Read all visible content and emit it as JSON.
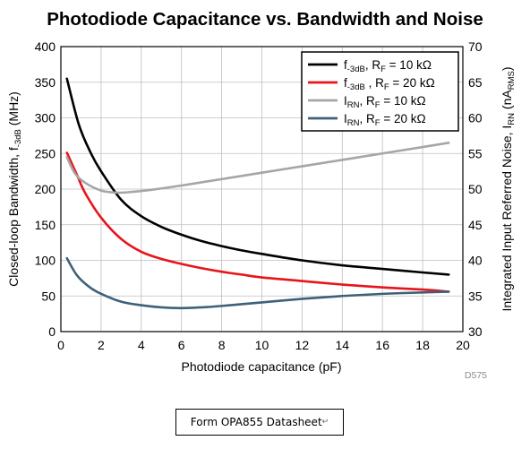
{
  "caption": "Form OPA855 Datasheet",
  "caption_mark": "↵",
  "chart_data": {
    "type": "line",
    "title": "Photodiode Capacitance vs. Bandwidth and Noise",
    "xlabel": "Photodiode capacitance (pF)",
    "ylabel_left": {
      "main": "Closed-loop Bandwidth, f",
      "sub": "-3dB",
      "tail": " (MHz)"
    },
    "ylabel_right": {
      "main": "Integrated Input Referred Noise, I",
      "sub": "RN",
      "mid": " (nA",
      "sub2": "RMS",
      "tail": ")"
    },
    "code": "D575",
    "xlim": [
      0,
      20
    ],
    "ylim_left": [
      0,
      400
    ],
    "ylim_right": [
      30,
      70
    ],
    "x_ticks": [
      0,
      2,
      4,
      6,
      8,
      10,
      12,
      14,
      16,
      18,
      20
    ],
    "y_ticks_left": [
      0,
      50,
      100,
      150,
      200,
      250,
      300,
      350,
      400
    ],
    "y_ticks_right": [
      30,
      35,
      40,
      45,
      50,
      55,
      60,
      65,
      70
    ],
    "grid": true,
    "legend_position": "top-right",
    "series": [
      {
        "name": "f-3dB, RF = 10 kΩ",
        "legend": {
          "main": "f",
          "sub": "-3dB",
          "rest": ", R",
          "sub2": "F",
          "tail": " = 10 kΩ"
        },
        "axis": "left",
        "color": "#000000",
        "x": [
          0.3,
          0.9,
          1.5,
          2,
          3,
          4,
          5,
          6,
          7,
          8,
          9,
          10,
          12,
          14,
          16,
          18,
          19.3
        ],
        "y": [
          355,
          290,
          250,
          225,
          185,
          162,
          147,
          136,
          127,
          120,
          114,
          109,
          100,
          93,
          88,
          83,
          80
        ]
      },
      {
        "name": "f-3dB, RF = 20 kΩ",
        "legend": {
          "main": "f",
          "sub": "-3dB",
          "rest": " , R",
          "sub2": "F",
          "tail": " = 20 kΩ"
        },
        "axis": "left",
        "color": "#e8141b",
        "x": [
          0.3,
          0.8,
          1.2,
          2,
          3,
          4,
          5,
          6,
          7,
          8,
          9,
          10,
          12,
          14,
          16,
          18,
          19.3
        ],
        "y": [
          251,
          220,
          195,
          160,
          130,
          112,
          102,
          95,
          89,
          84,
          80,
          76,
          71,
          66,
          62,
          59,
          56
        ]
      },
      {
        "name": "IRN, RF = 10 kΩ",
        "legend": {
          "main": "I",
          "sub": "RN",
          "rest": ", R",
          "sub2": "F",
          "tail": " = 10 kΩ"
        },
        "axis": "right",
        "color": "#a6a6a6",
        "x": [
          0.3,
          0.7,
          1.2,
          2,
          2.8,
          3.5,
          4.5,
          6,
          8,
          10,
          12,
          14,
          16,
          18,
          19.3
        ],
        "y": [
          54.5,
          52.2,
          50.9,
          49.8,
          49.5,
          49.6,
          49.9,
          50.5,
          51.4,
          52.3,
          53.2,
          54.1,
          55,
          55.9,
          56.5
        ]
      },
      {
        "name": "IRN, RF = 20 kΩ",
        "legend": {
          "main": "I",
          "sub": "RN",
          "rest": ", R",
          "sub2": "F",
          "tail": " = 20 kΩ"
        },
        "axis": "right",
        "color": "#3e6178",
        "x": [
          0.3,
          0.8,
          1.4,
          2,
          3,
          4,
          5,
          6,
          7,
          8,
          10,
          12,
          14,
          16,
          18,
          19.3
        ],
        "y": [
          40.3,
          37.9,
          36.3,
          35.3,
          34.2,
          33.7,
          33.4,
          33.3,
          33.4,
          33.6,
          34.1,
          34.6,
          35,
          35.3,
          35.5,
          35.6
        ]
      }
    ]
  }
}
